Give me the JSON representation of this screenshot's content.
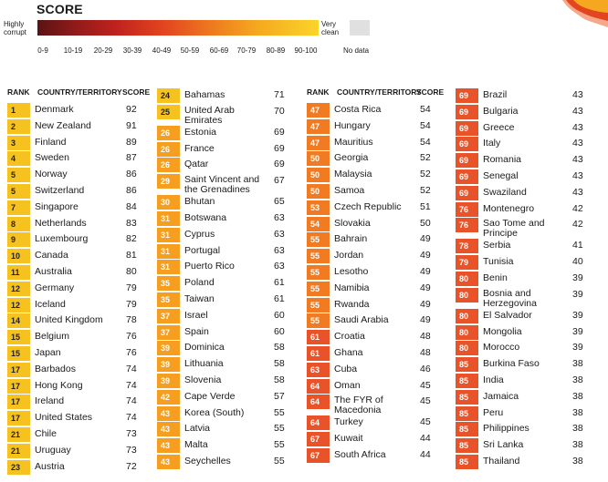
{
  "legend": {
    "title": "SCORE",
    "left_label": "Highly corrupt",
    "right_label": "Very clean",
    "ranges": [
      "0-9",
      "10-19",
      "20-29",
      "30-39",
      "40-49",
      "50-59",
      "60-69",
      "70-79",
      "80-89",
      "90-100"
    ],
    "no_data": "No data"
  },
  "headers": {
    "rank": "RANK",
    "country": "COUNTRY/TERRITORY",
    "score": "SCORE"
  },
  "colors": {
    "r1": "#f6c21f",
    "r2": "#f59e1f",
    "r3": "#f07b22",
    "r4": "#e8532a"
  },
  "columns": [
    [
      {
        "rank": "1",
        "country": "Denmark",
        "score": "92",
        "c": "r1"
      },
      {
        "rank": "2",
        "country": "New Zealand",
        "score": "91",
        "c": "r1"
      },
      {
        "rank": "3",
        "country": "Finland",
        "score": "89",
        "c": "r1"
      },
      {
        "rank": "4",
        "country": "Sweden",
        "score": "87",
        "c": "r1"
      },
      {
        "rank": "5",
        "country": "Norway",
        "score": "86",
        "c": "r1"
      },
      {
        "rank": "5",
        "country": "Switzerland",
        "score": "86",
        "c": "r1"
      },
      {
        "rank": "7",
        "country": "Singapore",
        "score": "84",
        "c": "r1"
      },
      {
        "rank": "8",
        "country": "Netherlands",
        "score": "83",
        "c": "r1"
      },
      {
        "rank": "9",
        "country": "Luxembourg",
        "score": "82",
        "c": "r1"
      },
      {
        "rank": "10",
        "country": "Canada",
        "score": "81",
        "c": "r1"
      },
      {
        "rank": "11",
        "country": "Australia",
        "score": "80",
        "c": "r1"
      },
      {
        "rank": "12",
        "country": "Germany",
        "score": "79",
        "c": "r1"
      },
      {
        "rank": "12",
        "country": "Iceland",
        "score": "79",
        "c": "r1"
      },
      {
        "rank": "14",
        "country": "United Kingdom",
        "score": "78",
        "c": "r1"
      },
      {
        "rank": "15",
        "country": "Belgium",
        "score": "76",
        "c": "r1"
      },
      {
        "rank": "15",
        "country": "Japan",
        "score": "76",
        "c": "r1"
      },
      {
        "rank": "17",
        "country": "Barbados",
        "score": "74",
        "c": "r1"
      },
      {
        "rank": "17",
        "country": "Hong Kong",
        "score": "74",
        "c": "r1"
      },
      {
        "rank": "17",
        "country": "Ireland",
        "score": "74",
        "c": "r1"
      },
      {
        "rank": "17",
        "country": "United States",
        "score": "74",
        "c": "r1"
      },
      {
        "rank": "21",
        "country": "Chile",
        "score": "73",
        "c": "r1"
      },
      {
        "rank": "21",
        "country": "Uruguay",
        "score": "73",
        "c": "r1"
      },
      {
        "rank": "23",
        "country": "Austria",
        "score": "72",
        "c": "r1"
      }
    ],
    [
      {
        "rank": "24",
        "country": "Bahamas",
        "score": "71",
        "c": "r1"
      },
      {
        "rank": "25",
        "country": "United Arab Emirates",
        "score": "70",
        "c": "r1",
        "dbl": true
      },
      {
        "rank": "26",
        "country": "Estonia",
        "score": "69",
        "c": "r2"
      },
      {
        "rank": "26",
        "country": "France",
        "score": "69",
        "c": "r2"
      },
      {
        "rank": "26",
        "country": "Qatar",
        "score": "69",
        "c": "r2"
      },
      {
        "rank": "29",
        "country": "Saint Vincent and the Grenadines",
        "score": "67",
        "c": "r2",
        "dbl": true
      },
      {
        "rank": "30",
        "country": "Bhutan",
        "score": "65",
        "c": "r2"
      },
      {
        "rank": "31",
        "country": "Botswana",
        "score": "63",
        "c": "r2"
      },
      {
        "rank": "31",
        "country": "Cyprus",
        "score": "63",
        "c": "r2"
      },
      {
        "rank": "31",
        "country": "Portugal",
        "score": "63",
        "c": "r2"
      },
      {
        "rank": "31",
        "country": "Puerto Rico",
        "score": "63",
        "c": "r2"
      },
      {
        "rank": "35",
        "country": "Poland",
        "score": "61",
        "c": "r2"
      },
      {
        "rank": "35",
        "country": "Taiwan",
        "score": "61",
        "c": "r2"
      },
      {
        "rank": "37",
        "country": "Israel",
        "score": "60",
        "c": "r2"
      },
      {
        "rank": "37",
        "country": "Spain",
        "score": "60",
        "c": "r2"
      },
      {
        "rank": "39",
        "country": "Dominica",
        "score": "58",
        "c": "r2"
      },
      {
        "rank": "39",
        "country": "Lithuania",
        "score": "58",
        "c": "r2"
      },
      {
        "rank": "39",
        "country": "Slovenia",
        "score": "58",
        "c": "r2"
      },
      {
        "rank": "42",
        "country": "Cape Verde",
        "score": "57",
        "c": "r2"
      },
      {
        "rank": "43",
        "country": "Korea (South)",
        "score": "55",
        "c": "r2"
      },
      {
        "rank": "43",
        "country": "Latvia",
        "score": "55",
        "c": "r2"
      },
      {
        "rank": "43",
        "country": "Malta",
        "score": "55",
        "c": "r2"
      },
      {
        "rank": "43",
        "country": "Seychelles",
        "score": "55",
        "c": "r2"
      }
    ],
    [
      {
        "rank": "47",
        "country": "Costa Rica",
        "score": "54",
        "c": "r3"
      },
      {
        "rank": "47",
        "country": "Hungary",
        "score": "54",
        "c": "r3"
      },
      {
        "rank": "47",
        "country": "Mauritius",
        "score": "54",
        "c": "r3"
      },
      {
        "rank": "50",
        "country": "Georgia",
        "score": "52",
        "c": "r3"
      },
      {
        "rank": "50",
        "country": "Malaysia",
        "score": "52",
        "c": "r3"
      },
      {
        "rank": "50",
        "country": "Samoa",
        "score": "52",
        "c": "r3"
      },
      {
        "rank": "53",
        "country": "Czech Republic",
        "score": "51",
        "c": "r3"
      },
      {
        "rank": "54",
        "country": "Slovakia",
        "score": "50",
        "c": "r3"
      },
      {
        "rank": "55",
        "country": "Bahrain",
        "score": "49",
        "c": "r3"
      },
      {
        "rank": "55",
        "country": "Jordan",
        "score": "49",
        "c": "r3"
      },
      {
        "rank": "55",
        "country": "Lesotho",
        "score": "49",
        "c": "r3"
      },
      {
        "rank": "55",
        "country": "Namibia",
        "score": "49",
        "c": "r3"
      },
      {
        "rank": "55",
        "country": "Rwanda",
        "score": "49",
        "c": "r3"
      },
      {
        "rank": "55",
        "country": "Saudi Arabia",
        "score": "49",
        "c": "r3"
      },
      {
        "rank": "61",
        "country": "Croatia",
        "score": "48",
        "c": "r4"
      },
      {
        "rank": "61",
        "country": "Ghana",
        "score": "48",
        "c": "r4"
      },
      {
        "rank": "63",
        "country": "Cuba",
        "score": "46",
        "c": "r4"
      },
      {
        "rank": "64",
        "country": "Oman",
        "score": "45",
        "c": "r4"
      },
      {
        "rank": "64",
        "country": "The FYR of Macedonia",
        "score": "45",
        "c": "r4",
        "dbl": true
      },
      {
        "rank": "64",
        "country": "Turkey",
        "score": "45",
        "c": "r4"
      },
      {
        "rank": "67",
        "country": "Kuwait",
        "score": "44",
        "c": "r4"
      },
      {
        "rank": "67",
        "country": "South Africa",
        "score": "44",
        "c": "r4"
      }
    ],
    [
      {
        "rank": "69",
        "country": "Brazil",
        "score": "43",
        "c": "r4"
      },
      {
        "rank": "69",
        "country": "Bulgaria",
        "score": "43",
        "c": "r4"
      },
      {
        "rank": "69",
        "country": "Greece",
        "score": "43",
        "c": "r4"
      },
      {
        "rank": "69",
        "country": "Italy",
        "score": "43",
        "c": "r4"
      },
      {
        "rank": "69",
        "country": "Romania",
        "score": "43",
        "c": "r4"
      },
      {
        "rank": "69",
        "country": "Senegal",
        "score": "43",
        "c": "r4"
      },
      {
        "rank": "69",
        "country": "Swaziland",
        "score": "43",
        "c": "r4"
      },
      {
        "rank": "76",
        "country": "Montenegro",
        "score": "42",
        "c": "r4"
      },
      {
        "rank": "76",
        "country": "Sao Tome and Principe",
        "score": "42",
        "c": "r4",
        "dbl": true
      },
      {
        "rank": "78",
        "country": "Serbia",
        "score": "41",
        "c": "r4"
      },
      {
        "rank": "79",
        "country": "Tunisia",
        "score": "40",
        "c": "r4"
      },
      {
        "rank": "80",
        "country": "Benin",
        "score": "39",
        "c": "r4"
      },
      {
        "rank": "80",
        "country": "Bosnia and Herzegovina",
        "score": "39",
        "c": "r4",
        "dbl": true
      },
      {
        "rank": "80",
        "country": "El Salvador",
        "score": "39",
        "c": "r4"
      },
      {
        "rank": "80",
        "country": "Mongolia",
        "score": "39",
        "c": "r4"
      },
      {
        "rank": "80",
        "country": "Morocco",
        "score": "39",
        "c": "r4"
      },
      {
        "rank": "85",
        "country": "Burkina Faso",
        "score": "38",
        "c": "r4"
      },
      {
        "rank": "85",
        "country": "India",
        "score": "38",
        "c": "r4"
      },
      {
        "rank": "85",
        "country": "Jamaica",
        "score": "38",
        "c": "r4"
      },
      {
        "rank": "85",
        "country": "Peru",
        "score": "38",
        "c": "r4"
      },
      {
        "rank": "85",
        "country": "Philippines",
        "score": "38",
        "c": "r4"
      },
      {
        "rank": "85",
        "country": "Sri Lanka",
        "score": "38",
        "c": "r4"
      },
      {
        "rank": "85",
        "country": "Thailand",
        "score": "38",
        "c": "r4"
      }
    ]
  ]
}
